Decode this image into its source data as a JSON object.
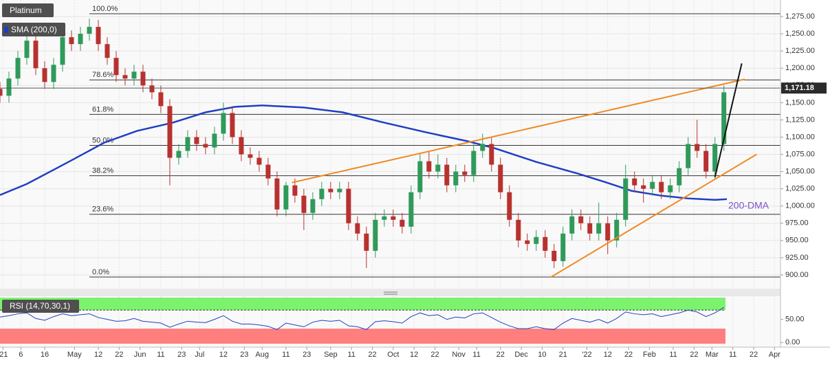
{
  "chart_data": [
    {
      "type": "candlestick",
      "title": "Platinum",
      "x": [
        0,
        3,
        6,
        9,
        12,
        15,
        18,
        21,
        24,
        27,
        30,
        33,
        36,
        39,
        42,
        45,
        48,
        51,
        54,
        57,
        60,
        63,
        66,
        69,
        72,
        75,
        78,
        81,
        84,
        87,
        90,
        93,
        96,
        99,
        102,
        105,
        108,
        111,
        114,
        117,
        120,
        123,
        126,
        129,
        132,
        135,
        138,
        141,
        144,
        147,
        150,
        153,
        156,
        159,
        162,
        165,
        168,
        171,
        174,
        177,
        180,
        183,
        186,
        189,
        192,
        195,
        198,
        201,
        204,
        207,
        210,
        213,
        216,
        219,
        222,
        225,
        228,
        231,
        234,
        237,
        240,
        243
      ],
      "open": [
        1170,
        1160,
        1185,
        1215,
        1240,
        1200,
        1180,
        1205,
        1245,
        1235,
        1250,
        1260,
        1235,
        1215,
        1190,
        1185,
        1195,
        1175,
        1165,
        1145,
        1070,
        1080,
        1100,
        1090,
        1085,
        1105,
        1135,
        1100,
        1075,
        1070,
        1060,
        1040,
        995,
        1030,
        1015,
        990,
        1010,
        1025,
        1020,
        1025,
        975,
        960,
        935,
        980,
        985,
        980,
        970,
        1020,
        1065,
        1050,
        1060,
        1030,
        1050,
        1045,
        1080,
        1090,
        1060,
        1020,
        980,
        950,
        945,
        955,
        935,
        920,
        960,
        985,
        975,
        960,
        975,
        950,
        980,
        1040,
        1030,
        1025,
        1035,
        1020,
        1030,
        1055,
        1090,
        1080,
        1050,
        1090
      ],
      "high": [
        1180,
        1195,
        1225,
        1250,
        1250,
        1210,
        1215,
        1255,
        1255,
        1260,
        1272,
        1270,
        1245,
        1225,
        1200,
        1205,
        1205,
        1185,
        1175,
        1155,
        1090,
        1110,
        1110,
        1100,
        1115,
        1150,
        1145,
        1110,
        1085,
        1080,
        1070,
        1050,
        1035,
        1040,
        1025,
        1020,
        1035,
        1035,
        1035,
        1035,
        985,
        970,
        990,
        995,
        995,
        990,
        1030,
        1075,
        1080,
        1075,
        1070,
        1060,
        1060,
        1090,
        1105,
        1100,
        1070,
        1030,
        990,
        960,
        965,
        965,
        945,
        970,
        995,
        995,
        985,
        1005,
        985,
        990,
        1060,
        1050,
        1040,
        1045,
        1045,
        1040,
        1065,
        1100,
        1125,
        1090,
        1100,
        1175
      ],
      "low": [
        1150,
        1150,
        1175,
        1205,
        1190,
        1170,
        1170,
        1195,
        1225,
        1225,
        1240,
        1225,
        1205,
        1180,
        1175,
        1175,
        1165,
        1155,
        1135,
        1030,
        1060,
        1070,
        1080,
        1075,
        1075,
        1095,
        1090,
        1065,
        1060,
        1050,
        1030,
        985,
        985,
        1005,
        965,
        980,
        1000,
        1010,
        1010,
        965,
        950,
        910,
        925,
        970,
        970,
        960,
        960,
        1010,
        1040,
        1040,
        1020,
        1020,
        1035,
        1035,
        1070,
        1050,
        1010,
        970,
        940,
        935,
        935,
        925,
        910,
        912,
        950,
        965,
        950,
        950,
        930,
        940,
        970,
        1020,
        1005,
        1015,
        1010,
        1010,
        1020,
        1045,
        1070,
        1040,
        1040,
        1080
      ],
      "close": [
        1160,
        1185,
        1215,
        1240,
        1200,
        1180,
        1205,
        1245,
        1235,
        1250,
        1260,
        1235,
        1215,
        1190,
        1185,
        1195,
        1175,
        1165,
        1145,
        1070,
        1080,
        1100,
        1090,
        1085,
        1105,
        1135,
        1100,
        1075,
        1070,
        1060,
        1040,
        995,
        1030,
        1015,
        990,
        1010,
        1025,
        1020,
        1025,
        975,
        960,
        935,
        980,
        985,
        980,
        970,
        1020,
        1065,
        1050,
        1060,
        1030,
        1050,
        1045,
        1080,
        1090,
        1060,
        1020,
        980,
        950,
        945,
        955,
        935,
        920,
        960,
        985,
        975,
        960,
        975,
        950,
        980,
        1040,
        1030,
        1025,
        1035,
        1020,
        1030,
        1055,
        1090,
        1080,
        1050,
        1090,
        1165
      ],
      "up_color": "#2f9a5a",
      "down_color": "#b8312f",
      "xlim": [
        0,
        262
      ],
      "xticks": [
        {
          "value": 1,
          "label": "'21"
        },
        {
          "value": 7,
          "label": "6"
        },
        {
          "value": 15,
          "label": "16"
        },
        {
          "value": 25,
          "label": "May"
        },
        {
          "value": 33,
          "label": "12"
        },
        {
          "value": 40,
          "label": "22"
        },
        {
          "value": 47,
          "label": "Jun"
        },
        {
          "value": 54,
          "label": "11"
        },
        {
          "value": 61,
          "label": "23"
        },
        {
          "value": 67,
          "label": "Jul"
        },
        {
          "value": 75,
          "label": "12"
        },
        {
          "value": 82,
          "label": "23"
        },
        {
          "value": 88,
          "label": "Aug"
        },
        {
          "value": 96,
          "label": "11"
        },
        {
          "value": 103,
          "label": "23"
        },
        {
          "value": 111,
          "label": "Sep"
        },
        {
          "value": 118,
          "label": "11"
        },
        {
          "value": 125,
          "label": "22"
        },
        {
          "value": 132,
          "label": "Oct"
        },
        {
          "value": 139,
          "label": "12"
        },
        {
          "value": 146,
          "label": "22"
        },
        {
          "value": 154,
          "label": "Nov"
        },
        {
          "value": 160,
          "label": "11"
        },
        {
          "value": 168,
          "label": "22"
        },
        {
          "value": 175,
          "label": "Dec"
        },
        {
          "value": 182,
          "label": "10"
        },
        {
          "value": 189,
          "label": "21"
        },
        {
          "value": 197,
          "label": "'22"
        },
        {
          "value": 204,
          "label": "12"
        },
        {
          "value": 211,
          "label": "22"
        },
        {
          "value": 218,
          "label": "Feb"
        },
        {
          "value": 226,
          "label": "11"
        },
        {
          "value": 233,
          "label": "22"
        },
        {
          "value": 239,
          "label": "Mar"
        },
        {
          "value": 246,
          "label": "11"
        },
        {
          "value": 253,
          "label": "22"
        },
        {
          "value": 260,
          "label": "Apr"
        }
      ],
      "ylim": [
        880,
        1299
      ],
      "yticks": [
        {
          "value": 900,
          "label": "900.00"
        },
        {
          "value": 925,
          "label": "925.00"
        },
        {
          "value": 950,
          "label": "950.00"
        },
        {
          "value": 975,
          "label": "975.00"
        },
        {
          "value": 1000,
          "label": "1,000.00"
        },
        {
          "value": 1025,
          "label": "1,025.00"
        },
        {
          "value": 1050,
          "label": "1,050.00"
        },
        {
          "value": 1075,
          "label": "1,075.00"
        },
        {
          "value": 1100,
          "label": "1,100.00"
        },
        {
          "value": 1125,
          "label": "1,125.00"
        },
        {
          "value": 1150,
          "label": "1,150.00"
        },
        {
          "value": 1175,
          "label": "1,175.00"
        },
        {
          "value": 1200,
          "label": "1,200.00"
        },
        {
          "value": 1225,
          "label": "1,225.00"
        },
        {
          "value": 1250,
          "label": "1,250.00"
        },
        {
          "value": 1275,
          "label": "1,275.00"
        }
      ],
      "grid": true,
      "indicators": [
        {
          "name": "SMA (200,0)",
          "color": "#1f3fc4",
          "x": [
            0,
            9,
            23,
            35,
            46,
            58,
            69,
            79,
            88,
            102,
            115,
            129,
            143,
            157,
            166,
            180,
            194,
            203,
            212,
            222,
            231,
            240,
            244
          ],
          "values": [
            1016,
            1032,
            1064,
            1092,
            1109,
            1121,
            1136,
            1144,
            1146,
            1143,
            1136,
            1121,
            1107,
            1094,
            1084,
            1064,
            1047,
            1035,
            1022,
            1015,
            1011,
            1009,
            1010
          ]
        }
      ],
      "levels": [
        {
          "label": "100.0%",
          "value": 1279
        },
        {
          "label": "78.6%",
          "value": 1183
        },
        {
          "label": "61.8%",
          "value": 1133
        },
        {
          "label": "50.0%",
          "value": 1088
        },
        {
          "label": "38.2%",
          "value": 1044
        },
        {
          "label": "23.6%",
          "value": 988
        },
        {
          "label": "0.0%",
          "value": 897
        }
      ],
      "level_color": "#333333",
      "trendlines": [
        {
          "color": "#f08a24",
          "x": [
            98,
            250
          ],
          "values": [
            1034,
            1184
          ]
        },
        {
          "color": "#f08a24",
          "x": [
            185,
            254
          ],
          "values": [
            897,
            1075
          ]
        },
        {
          "color": "#111111",
          "x": [
            240,
            249
          ],
          "values": [
            1042,
            1207
          ]
        }
      ],
      "annotations": [
        {
          "text": "200-DMA",
          "color": "#7a52c7"
        }
      ],
      "last_price": {
        "value": 1171.18,
        "label": "1,171.18"
      }
    },
    {
      "type": "line",
      "title": "RSI (14,70,30,1)",
      "color": "#1f3fc4",
      "x": [
        0,
        3,
        6,
        9,
        12,
        15,
        18,
        21,
        24,
        27,
        30,
        33,
        36,
        39,
        42,
        45,
        48,
        51,
        54,
        57,
        60,
        63,
        66,
        69,
        72,
        75,
        78,
        81,
        84,
        87,
        90,
        93,
        96,
        99,
        102,
        105,
        108,
        111,
        114,
        117,
        120,
        123,
        126,
        129,
        132,
        135,
        138,
        141,
        144,
        147,
        150,
        153,
        156,
        159,
        162,
        165,
        168,
        171,
        174,
        177,
        180,
        183,
        186,
        189,
        192,
        195,
        198,
        201,
        204,
        207,
        210,
        213,
        216,
        219,
        222,
        225,
        228,
        231,
        234,
        237,
        240,
        243
      ],
      "values": [
        55,
        58,
        62,
        64,
        52,
        48,
        56,
        62,
        58,
        60,
        62,
        54,
        50,
        46,
        47,
        52,
        46,
        44,
        42,
        33,
        40,
        46,
        44,
        43,
        50,
        58,
        46,
        40,
        40,
        38,
        35,
        28,
        42,
        38,
        34,
        44,
        48,
        46,
        48,
        36,
        34,
        28,
        45,
        47,
        45,
        42,
        56,
        64,
        58,
        60,
        50,
        55,
        53,
        62,
        64,
        54,
        44,
        36,
        30,
        30,
        34,
        30,
        28,
        42,
        52,
        48,
        44,
        50,
        42,
        52,
        66,
        62,
        60,
        62,
        56,
        60,
        64,
        70,
        66,
        56,
        64,
        76
      ],
      "xlim": [
        0,
        262
      ],
      "ylim": [
        -10,
        100
      ],
      "yticks": [
        {
          "value": 50,
          "label": "50.00"
        },
        {
          "value": 0,
          "label": "0.00"
        }
      ],
      "bands": {
        "upper": 70,
        "lower": 30,
        "upper_color": "#7cf26e",
        "lower_color": "#ff7f7f"
      }
    }
  ]
}
